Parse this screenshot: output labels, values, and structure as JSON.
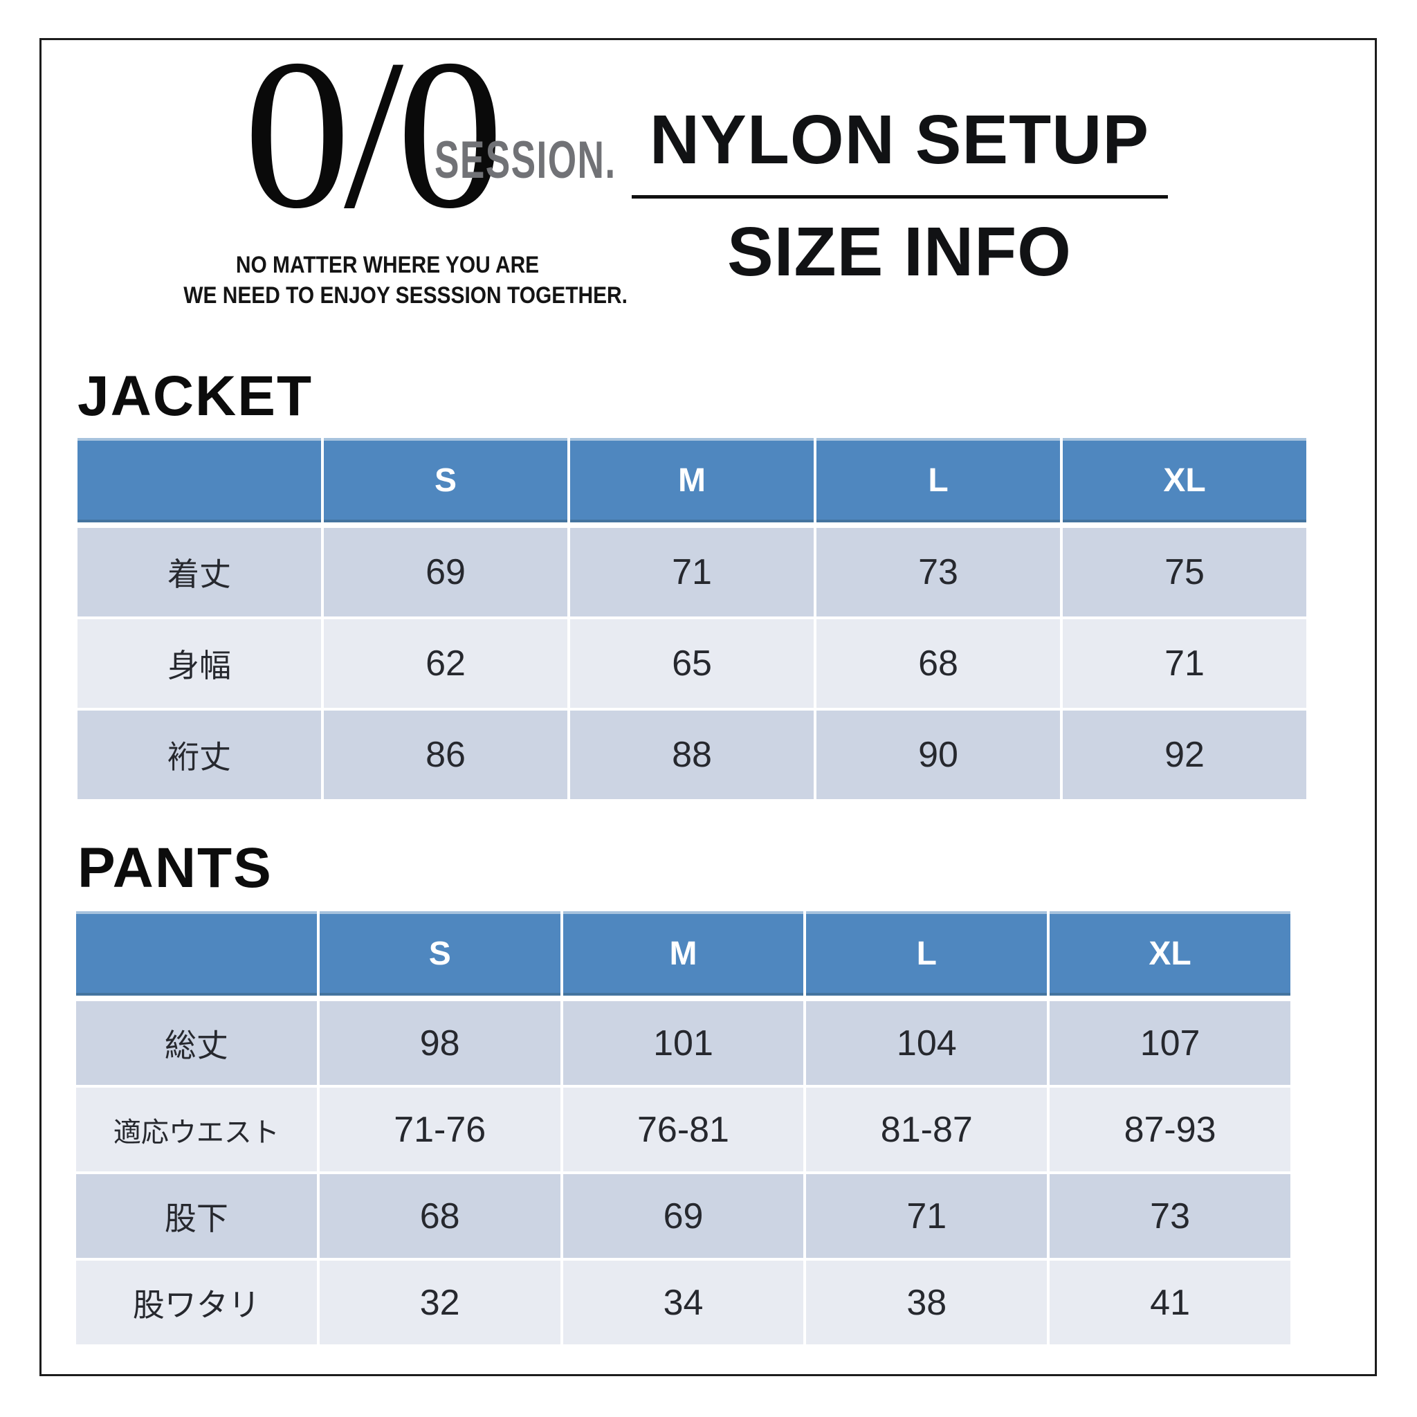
{
  "brand": {
    "logo_text": "0/0",
    "logo_sub": "SESSION.",
    "tagline_line1": "NO MATTER WHERE YOU ARE",
    "tagline_line2": "WE NEED TO ENJOY SESSSION TOGETHER."
  },
  "header": {
    "product_title": "NYLON SETUP",
    "subtitle": "SIZE INFO"
  },
  "jacket": {
    "section_title": "JACKET",
    "columns": [
      "S",
      "M",
      "L",
      "XL"
    ],
    "rows": [
      {
        "label": "着丈",
        "values": [
          "69",
          "71",
          "73",
          "75"
        ]
      },
      {
        "label": "身幅",
        "values": [
          "62",
          "65",
          "68",
          "71"
        ]
      },
      {
        "label": "裄丈",
        "values": [
          "86",
          "88",
          "90",
          "92"
        ]
      }
    ]
  },
  "pants": {
    "section_title": "PANTS",
    "columns": [
      "S",
      "M",
      "L",
      "XL"
    ],
    "rows": [
      {
        "label": "総丈",
        "values": [
          "98",
          "101",
          "104",
          "107"
        ]
      },
      {
        "label": "適応ウエスト",
        "values": [
          "71-76",
          "76-81",
          "81-87",
          "87-93"
        ]
      },
      {
        "label": "股下",
        "values": [
          "68",
          "69",
          "71",
          "73"
        ]
      },
      {
        "label": "股ワタリ",
        "values": [
          "32",
          "34",
          "38",
          "41"
        ]
      }
    ]
  },
  "colors": {
    "table_header_blue": "#4f87bf",
    "row_band_dark": "#ccd4e3",
    "row_band_light": "#e8ebf2",
    "logo_gray": "#717276",
    "ink": "#111214"
  }
}
